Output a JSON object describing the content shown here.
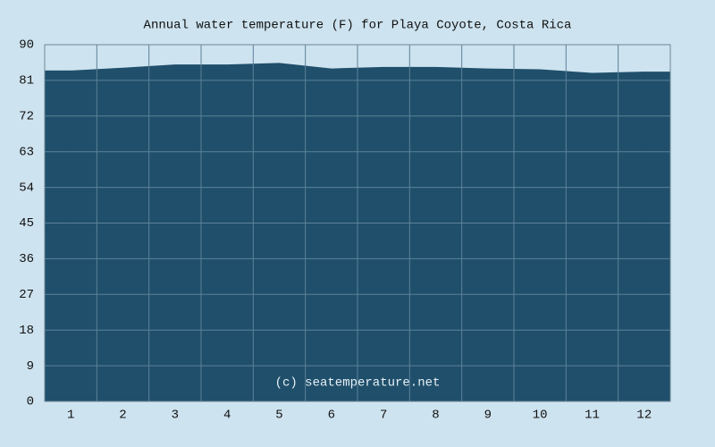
{
  "chart_data": {
    "type": "area",
    "title": "Annual water temperature (F) for Playa Coyote, Costa Rica",
    "watermark": "(c) seatemperature.net",
    "categories": [
      "1",
      "2",
      "3",
      "4",
      "5",
      "6",
      "7",
      "8",
      "9",
      "10",
      "11",
      "12"
    ],
    "values": [
      83.5,
      84.2,
      85,
      85,
      85.4,
      84,
      84.4,
      84.4,
      84,
      83.8,
      82.9,
      83.2
    ],
    "color": "#1f4f6b",
    "ylim": [
      0,
      90
    ],
    "yticks": [
      0,
      9,
      18,
      27,
      36,
      45,
      54,
      63,
      72,
      81,
      90
    ],
    "grid": true
  }
}
